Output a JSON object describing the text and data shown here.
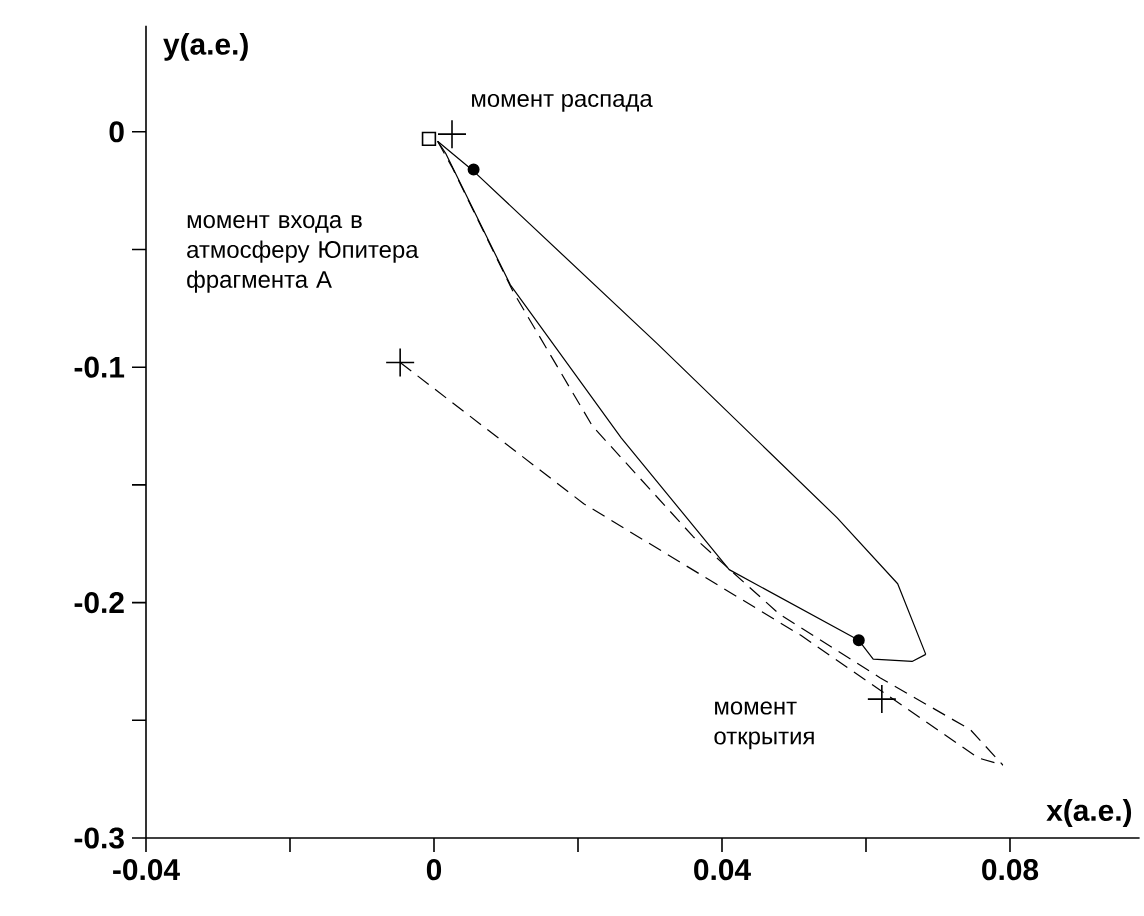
{
  "chart_data": {
    "type": "line",
    "xlabel": "x(а.е.)",
    "ylabel": "y(а.е.)",
    "xlim": [
      -0.04,
      0.098
    ],
    "ylim": [
      -0.3,
      0.045
    ],
    "xticks": [
      -0.04,
      {
        "value": -0.02,
        "label": null
      },
      0,
      {
        "value": 0.02,
        "label": null
      },
      0.04,
      {
        "value": 0.06,
        "label": null
      },
      0.08
    ],
    "yticks": [
      -0.3,
      {
        "value": -0.25,
        "label": null
      },
      -0.2,
      {
        "value": -0.15,
        "label": null
      },
      -0.1,
      {
        "value": -0.05,
        "label": null
      },
      0
    ],
    "grid": false,
    "series": [
      {
        "line_style": "solid",
        "color": "#000000",
        "x": [
          0.0005,
          0.0056,
          0.031,
          0.056,
          0.0644,
          0.0683
        ],
        "values": [
          -0.004,
          -0.017,
          -0.09,
          -0.164,
          -0.192,
          -0.222
        ]
      },
      {
        "line_style": "solid",
        "color": "#000000",
        "x": [
          0.0005,
          0.0016,
          0.0106,
          0.026,
          0.041,
          0.059,
          0.061,
          0.0664,
          0.0683
        ],
        "values": [
          -0.004,
          -0.009,
          -0.065,
          -0.13,
          -0.186,
          -0.216,
          -0.224,
          -0.225,
          -0.222
        ]
      },
      {
        "line_style": "dashed",
        "color": "#000000",
        "x": [
          -0.0047,
          0.0208,
          0.051,
          0.0756,
          0.079
        ],
        "values": [
          -0.098,
          -0.158,
          -0.214,
          -0.266,
          -0.269
        ]
      },
      {
        "line_style": "dashed",
        "color": "#000000",
        "x": [
          0.0005,
          0.0025,
          0.011,
          0.022,
          0.036,
          0.048,
          0.062,
          0.0745,
          0.079
        ],
        "values": [
          -0.004,
          -0.015,
          -0.068,
          -0.125,
          -0.172,
          -0.205,
          -0.232,
          -0.254,
          -0.269
        ]
      },
      {
        "type": "scatter",
        "marker": "cross",
        "color": "#000000",
        "x": [
          0.0025,
          -0.0047,
          0.0622
        ],
        "values": [
          -0.001,
          -0.098,
          -0.241
        ]
      },
      {
        "type": "scatter",
        "marker": "square",
        "color": "#000000",
        "x": [
          -0.0007
        ],
        "values": [
          -0.003
        ]
      },
      {
        "type": "scatter",
        "marker": "circle",
        "color": "#000000",
        "x": [
          0.0055,
          0.059
        ],
        "values": [
          -0.016,
          -0.216
        ]
      }
    ],
    "annotations": [
      {
        "text": "момент распада",
        "x": 0.0025,
        "y": -0.001
      },
      "момент входа в атмосферу Юпитера фрагмента А",
      {
        "text": "момент открытия",
        "x": 0.0622,
        "y": -0.241
      }
    ]
  }
}
